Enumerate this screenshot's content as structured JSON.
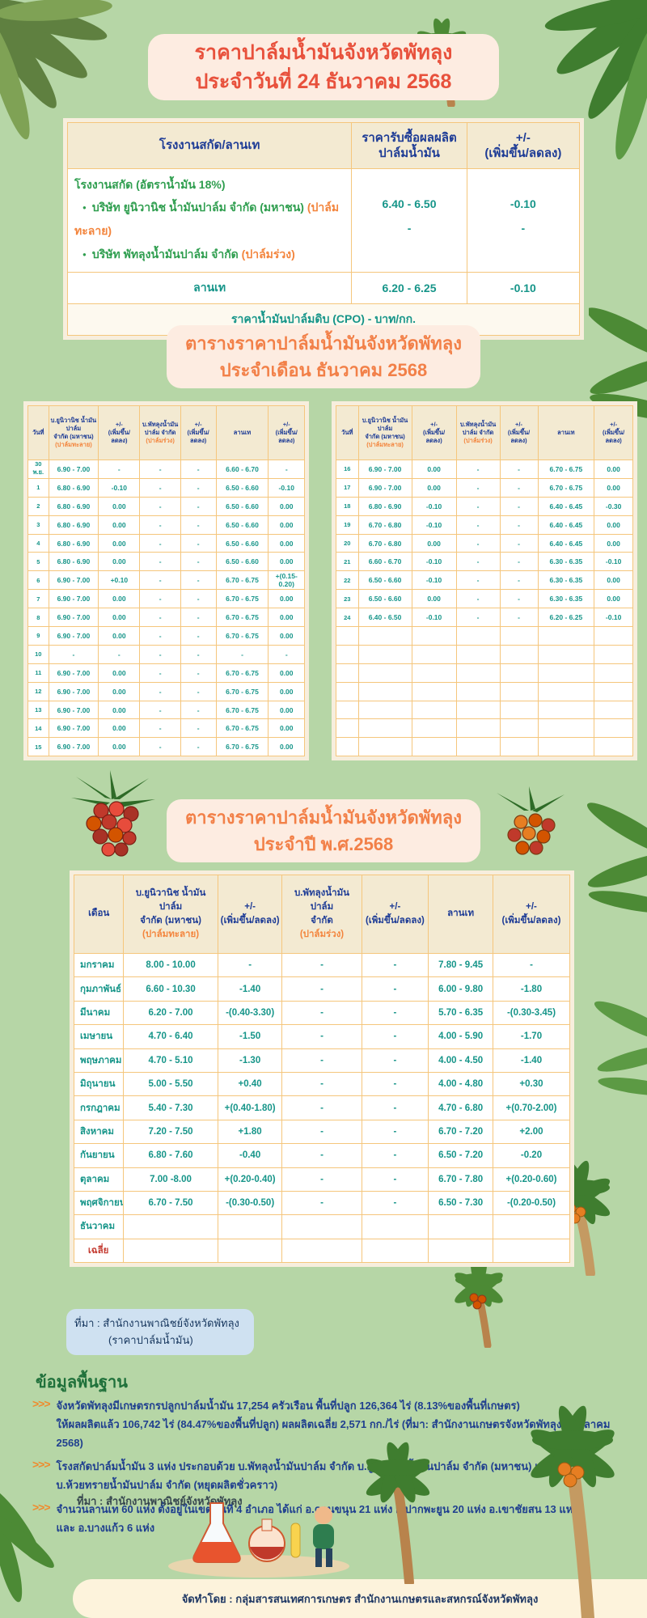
{
  "colors": {
    "background": "#b6d6a6",
    "title_red": "#e8513c",
    "section_orange": "#f28048",
    "header_navy": "#1e3c96",
    "value_teal": "#169589",
    "company_green": "#2f9e4f",
    "note_orange": "#f3853d",
    "average_red": "#c43c32"
  },
  "header": {
    "title_line1": "ราคาปาล์มน้ำมันจังหวัดพัทลุง",
    "title_line2": "ประจำวันที่ 24 ธันวาคม 2568"
  },
  "daily_table": {
    "headers": [
      "โรงงานสกัด/ลานเท",
      "ราคารับซื้อผลผลิต\nปาล์มน้ำมัน",
      "+/-\n(เพิ่มขึ้น/ลดลง)"
    ],
    "factory": {
      "group_title": "โรงงานสกัด (อัตราน้ำมัน 18%)",
      "companies": [
        {
          "name": "บริษัท ยูนิวานิช น้ำมันปาล์ม จำกัด (มหาชน)",
          "note": "(ปาล์มทะลาย)"
        },
        {
          "name": "บริษัท พัทลุงน้ำมันปาล์ม จำกัด",
          "note": "(ปาล์มร่วง)"
        }
      ],
      "prices": "6.40 - 6.50\n-",
      "changes": "-0.10\n-"
    },
    "lan_te": {
      "label": "ลานเท",
      "price": "6.20 - 6.25",
      "change": "-0.10"
    },
    "cpo_note": "ราคาน้ำมันปาล์มดิบ (CPO)   -   บาท/กก."
  },
  "monthly_section": {
    "title_line1": "ตารางราคาปาล์มน้ำมันจังหวัดพัทลุง",
    "title_line2": "ประจำเดือน ธันวาคม 2568",
    "col_headers": {
      "date": "วันที่",
      "univanich_main": "บ.ยูนิวานิช น้ำมัน\nปาล์ม\nจำกัด (มหาชน)",
      "univanich_sub": "(ปาล์มทะลาย)",
      "change_a": "+/-\n(เพิ่มขึ้น/\nลดลง)",
      "phatthalung_main": "บ.พัทลุงน้ำมัน\nปาล์ม จำกัด",
      "phatthalung_sub": "(ปาล์มร่วง)",
      "change_b": "+/-\n(เพิ่มขึ้น/\nลดลง)",
      "lan_te": "ลานเท",
      "change_c": "+/-\n(เพิ่มขึ้น/ลดลง)"
    },
    "left_rows": [
      [
        "30 พ.ย.",
        "6.90 - 7.00",
        "-",
        "-",
        "-",
        "6.60 - 6.70",
        "-"
      ],
      [
        "1",
        "6.80 - 6.90",
        "-0.10",
        "-",
        "-",
        "6.50 - 6.60",
        "-0.10"
      ],
      [
        "2",
        "6.80 - 6.90",
        "0.00",
        "-",
        "-",
        "6.50 - 6.60",
        "0.00"
      ],
      [
        "3",
        "6.80 - 6.90",
        "0.00",
        "-",
        "-",
        "6.50 - 6.60",
        "0.00"
      ],
      [
        "4",
        "6.80 - 6.90",
        "0.00",
        "-",
        "-",
        "6.50 - 6.60",
        "0.00"
      ],
      [
        "5",
        "6.80 - 6.90",
        "0.00",
        "-",
        "-",
        "6.50 - 6.60",
        "0.00"
      ],
      [
        "6",
        "6.90 - 7.00",
        "+0.10",
        "-",
        "-",
        "6.70 - 6.75",
        "+(0.15-0.20)"
      ],
      [
        "7",
        "6.90 - 7.00",
        "0.00",
        "-",
        "-",
        "6.70 - 6.75",
        "0.00"
      ],
      [
        "8",
        "6.90 - 7.00",
        "0.00",
        "-",
        "-",
        "6.70 - 6.75",
        "0.00"
      ],
      [
        "9",
        "6.90 - 7.00",
        "0.00",
        "-",
        "-",
        "6.70 - 6.75",
        "0.00"
      ],
      [
        "10",
        "-",
        "-",
        "-",
        "-",
        "-",
        "-"
      ],
      [
        "11",
        "6.90 - 7.00",
        "0.00",
        "-",
        "-",
        "6.70 - 6.75",
        "0.00"
      ],
      [
        "12",
        "6.90 - 7.00",
        "0.00",
        "-",
        "-",
        "6.70 - 6.75",
        "0.00"
      ],
      [
        "13",
        "6.90 - 7.00",
        "0.00",
        "-",
        "-",
        "6.70 - 6.75",
        "0.00"
      ],
      [
        "14",
        "6.90 - 7.00",
        "0.00",
        "-",
        "-",
        "6.70 - 6.75",
        "0.00"
      ],
      [
        "15",
        "6.90 - 7.00",
        "0.00",
        "-",
        "-",
        "6.70 - 6.75",
        "0.00"
      ]
    ],
    "right_rows": [
      [
        "16",
        "6.90 - 7.00",
        "0.00",
        "-",
        "-",
        "6.70 - 6.75",
        "0.00"
      ],
      [
        "17",
        "6.90 - 7.00",
        "0.00",
        "-",
        "-",
        "6.70 - 6.75",
        "0.00"
      ],
      [
        "18",
        "6.80 - 6.90",
        "-0.10",
        "-",
        "-",
        "6.40 - 6.45",
        "-0.30"
      ],
      [
        "19",
        "6.70 - 6.80",
        "-0.10",
        "-",
        "-",
        "6.40 - 6.45",
        "0.00"
      ],
      [
        "20",
        "6.70 - 6.80",
        "0.00",
        "-",
        "-",
        "6.40 - 6.45",
        "0.00"
      ],
      [
        "21",
        "6.60 - 6.70",
        "-0.10",
        "-",
        "-",
        "6.30 - 6.35",
        "-0.10"
      ],
      [
        "22",
        "6.50 - 6.60",
        "-0.10",
        "-",
        "-",
        "6.30 - 6.35",
        "0.00"
      ],
      [
        "23",
        "6.50 - 6.60",
        "0.00",
        "-",
        "-",
        "6.30 - 6.35",
        "0.00"
      ],
      [
        "24",
        "6.40 - 6.50",
        "-0.10",
        "-",
        "-",
        "6.20 - 6.25",
        "-0.10"
      ],
      [
        "",
        "",
        "",
        "",
        "",
        "",
        ""
      ],
      [
        "",
        "",
        "",
        "",
        "",
        "",
        ""
      ],
      [
        "",
        "",
        "",
        "",
        "",
        "",
        ""
      ],
      [
        "",
        "",
        "",
        "",
        "",
        "",
        ""
      ],
      [
        "",
        "",
        "",
        "",
        "",
        "",
        ""
      ],
      [
        "",
        "",
        "",
        "",
        "",
        "",
        ""
      ],
      [
        "",
        "",
        "",
        "",
        "",
        "",
        ""
      ]
    ]
  },
  "yearly_section": {
    "title_line1": "ตารางราคาปาล์มน้ำมันจังหวัดพัทลุง",
    "title_line2": "ประจำปี พ.ศ.2568",
    "col_headers": {
      "month": "เดือน",
      "univanich_main": "บ.ยูนิวานิช น้ำมันปาล์ม\nจำกัด (มหาชน)",
      "univanich_sub": "(ปาล์มทะลาย)",
      "change_a": "+/-\n(เพิ่มขึ้น/ลดลง)",
      "phatthalung_main": "บ.พัทลุงน้ำมันปาล์ม\nจำกัด",
      "phatthalung_sub": "(ปาล์มร่วง)",
      "change_b": "+/-\n(เพิ่มขึ้น/ลดลง)",
      "lan_te": "ลานเท",
      "change_c": "+/-\n(เพิ่มขึ้น/ลดลง)"
    },
    "rows": [
      [
        "มกราคม",
        "8.00 - 10.00",
        "-",
        "-",
        "-",
        "7.80 - 9.45",
        "-"
      ],
      [
        "กุมภาพันธ์",
        "6.60 - 10.30",
        "-1.40",
        "-",
        "-",
        "6.00 - 9.80",
        "-1.80"
      ],
      [
        "มีนาคม",
        "6.20 - 7.00",
        "-(0.40-3.30)",
        "-",
        "-",
        "5.70 - 6.35",
        "-(0.30-3.45)"
      ],
      [
        "เมษายน",
        "4.70 - 6.40",
        "-1.50",
        "-",
        "-",
        "4.00 - 5.90",
        "-1.70"
      ],
      [
        "พฤษภาคม",
        "4.70 - 5.10",
        "-1.30",
        "-",
        "-",
        "4.00 - 4.50",
        "-1.40"
      ],
      [
        "มิถุนายน",
        "5.00 - 5.50",
        "+0.40",
        "-",
        "-",
        "4.00 - 4.80",
        "+0.30"
      ],
      [
        "กรกฎาคม",
        "5.40 - 7.30",
        "+(0.40-1.80)",
        "-",
        "-",
        "4.70 - 6.80",
        "+(0.70-2.00)"
      ],
      [
        "สิงหาคม",
        "7.20 - 7.50",
        "+1.80",
        "-",
        "-",
        "6.70 - 7.20",
        "+2.00"
      ],
      [
        "กันยายน",
        "6.80 - 7.60",
        "-0.40",
        "-",
        "-",
        "6.50 - 7.20",
        "-0.20"
      ],
      [
        "ตุลาคม",
        "7.00 -8.00",
        "+(0.20-0.40)",
        "-",
        "-",
        "6.70 - 7.80",
        "+(0.20-0.60)"
      ],
      [
        "พฤศจิกายน",
        "6.70 - 7.50",
        "-(0.30-0.50)",
        "-",
        "-",
        "6.50 - 7.30",
        "-(0.20-0.50)"
      ],
      [
        "ธันวาคม",
        "",
        "",
        "",
        "",
        "",
        ""
      ],
      [
        "เฉลี่ย",
        "",
        "",
        "",
        "",
        "",
        ""
      ]
    ]
  },
  "footer": {
    "source_line1": "ที่มา : สำนักงานพาณิชย์จังหวัดพัทลุง",
    "source_line2": "(ราคาปาล์มน้ำมัน)",
    "basics_heading": "ข้อมูลพื้นฐาน",
    "bullets": [
      "จังหวัดพัทลุงมีเกษตรกรปลูกปาล์มน้ำมัน 17,254 ครัวเรือน พื้นที่ปลูก 126,364 ไร่ (8.13%ของพื้นที่เกษตร)\nให้ผลผลิตแล้ว 106,742 ไร่ (84.47%ของพื้นที่ปลูก) ผลผลิตเฉลี่ย 2,571 กก./ไร่ (ที่มา: สำนักงานเกษตรจังหวัดพัทลุง ณ ตุลาคม 2568)",
      "โรงสกัดปาล์มน้ำมัน 3 แห่ง ประกอบด้วย บ.พัทลุงน้ำมันปาล์ม จำกัด บ.ยูนิวานิชน้ำมันปาล์ม จำกัด (มหาชน) และ\nบ.ห้วยทรายน้ำมันปาล์ม จำกัด (หยุดผลิตชั่วคราว)",
      "จำนวนลานเท 60 แห่ง ตั้งอยู่ในเขตพื้นที่ 4 อำเภอ ได้แก่ อ.ควนขนุน 21 แห่ง อ.ปากพะยูน 20 แห่ง  อ.เขาชัยสน 13 แห่ง\nและ อ.บางแก้ว 6 แห่ง"
    ],
    "source2": "ที่มา : สำนักงานพาณิชย์จังหวัดพัทลุง",
    "credit": "จัดทำโดย : กลุ่มสารสนเทศการเกษตร สำนักงานเกษตรและสหกรณ์จังหวัดพัทลุง"
  }
}
